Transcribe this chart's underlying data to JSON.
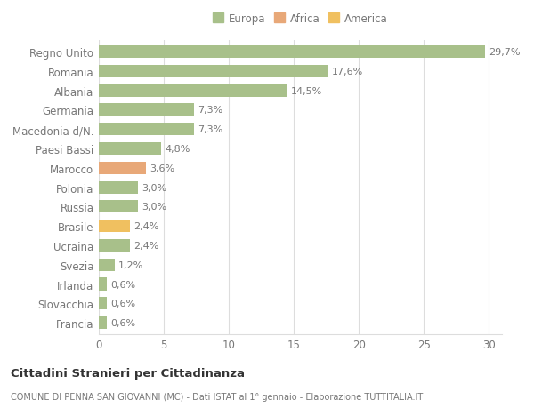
{
  "categories": [
    "Francia",
    "Slovacchia",
    "Irlanda",
    "Svezia",
    "Ucraina",
    "Brasile",
    "Russia",
    "Polonia",
    "Marocco",
    "Paesi Bassi",
    "Macedonia d/N.",
    "Germania",
    "Albania",
    "Romania",
    "Regno Unito"
  ],
  "values": [
    0.6,
    0.6,
    0.6,
    1.2,
    2.4,
    2.4,
    3.0,
    3.0,
    3.6,
    4.8,
    7.3,
    7.3,
    14.5,
    17.6,
    29.7
  ],
  "labels": [
    "0,6%",
    "0,6%",
    "0,6%",
    "1,2%",
    "2,4%",
    "2,4%",
    "3,0%",
    "3,0%",
    "3,6%",
    "4,8%",
    "7,3%",
    "7,3%",
    "14,5%",
    "17,6%",
    "29,7%"
  ],
  "colors": [
    "#a8c08a",
    "#a8c08a",
    "#a8c08a",
    "#a8c08a",
    "#a8c08a",
    "#f0c060",
    "#a8c08a",
    "#a8c08a",
    "#e8a878",
    "#a8c08a",
    "#a8c08a",
    "#a8c08a",
    "#a8c08a",
    "#a8c08a",
    "#a8c08a"
  ],
  "legend_labels": [
    "Europa",
    "Africa",
    "America"
  ],
  "legend_colors": [
    "#a8c08a",
    "#e8a878",
    "#f0c060"
  ],
  "title": "Cittadini Stranieri per Cittadinanza",
  "subtitle": "COMUNE DI PENNA SAN GIOVANNI (MC) - Dati ISTAT al 1° gennaio - Elaborazione TUTTITALIA.IT",
  "xlim": [
    0,
    31
  ],
  "xticks": [
    0,
    5,
    10,
    15,
    20,
    25,
    30
  ],
  "background_color": "#ffffff",
  "bar_height": 0.65,
  "grid_color": "#dddddd",
  "label_fontsize": 8,
  "tick_fontsize": 8.5,
  "ytick_color": "#777777",
  "xtick_color": "#777777",
  "label_color": "#777777"
}
